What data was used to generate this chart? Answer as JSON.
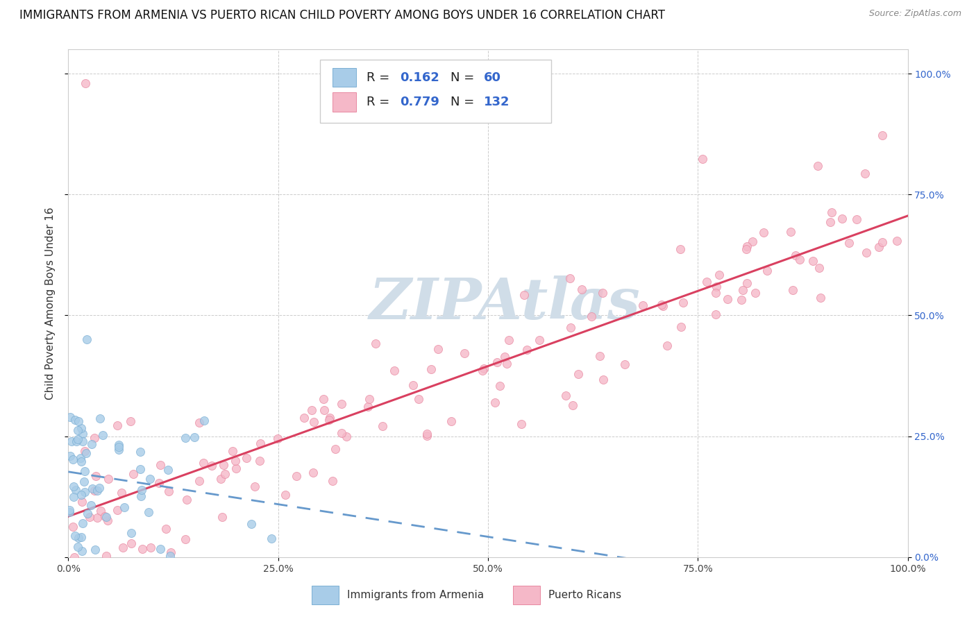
{
  "title": "IMMIGRANTS FROM ARMENIA VS PUERTO RICAN CHILD POVERTY AMONG BOYS UNDER 16 CORRELATION CHART",
  "source": "Source: ZipAtlas.com",
  "ylabel": "Child Poverty Among Boys Under 16",
  "xlim": [
    0,
    1.0
  ],
  "ylim": [
    0,
    1.05
  ],
  "xticks": [
    0,
    0.25,
    0.5,
    0.75,
    1.0
  ],
  "yticks": [
    0,
    0.25,
    0.5,
    0.75,
    1.0
  ],
  "xticklabels": [
    "0.0%",
    "25.0%",
    "50.0%",
    "75.0%",
    "100.0%"
  ],
  "yticklabels": [
    "0.0%",
    "25.0%",
    "50.0%",
    "75.0%",
    "100.0%"
  ],
  "series1_label": "Immigrants from Armenia",
  "series1_R": 0.162,
  "series1_N": 60,
  "series1_color": "#a8cce8",
  "series1_edge": "#7bafd4",
  "series1_trend_color": "#6699cc",
  "series2_label": "Puerto Ricans",
  "series2_R": 0.779,
  "series2_N": 132,
  "series2_color": "#f5b8c8",
  "series2_edge": "#e888a0",
  "series2_trend_color": "#d94060",
  "background_color": "#ffffff",
  "watermark_text": "ZIPAtlas",
  "watermark_color": "#d0dde8",
  "title_fontsize": 12,
  "axis_label_fontsize": 11,
  "tick_fontsize": 10,
  "right_tick_color": "#3366cc",
  "legend_R_color": "#3366cc",
  "legend_N_color": "#3366cc"
}
